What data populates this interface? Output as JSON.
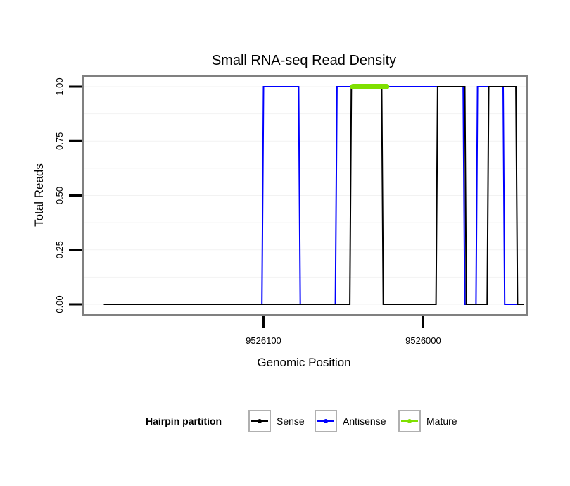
{
  "chart_data": {
    "type": "line",
    "title": "Small RNA-seq Read Density",
    "xlabel": "Genomic Position",
    "ylabel": "Total Reads",
    "x_reversed": true,
    "xlim": [
      9526213,
      9525935
    ],
    "ylim": [
      0,
      1
    ],
    "x_ticks": [
      {
        "value": 9526100,
        "label": "9526100"
      },
      {
        "value": 9526000,
        "label": "9526000"
      }
    ],
    "y_ticks": [
      {
        "value": 0,
        "label": "0.00"
      },
      {
        "value": 0.25,
        "label": "0.25"
      },
      {
        "value": 0.5,
        "label": "0.50"
      },
      {
        "value": 0.75,
        "label": "0.75"
      },
      {
        "value": 1,
        "label": "1.00"
      }
    ],
    "legend": {
      "title": "Hairpin partition",
      "position": "bottom",
      "entries": [
        {
          "name": "Sense",
          "color": "#000000"
        },
        {
          "name": "Antisense",
          "color": "#0000ff"
        },
        {
          "name": "Mature",
          "color": "#7fe000"
        }
      ]
    },
    "series": [
      {
        "name": "Antisense",
        "color": "#0000ff",
        "x": [
          9526200,
          9526101,
          9526100,
          9526078,
          9526077,
          9526055,
          9526054,
          9525975,
          9525974,
          9525967,
          9525966,
          9525950,
          9525949,
          9525940
        ],
        "y": [
          0,
          0,
          1,
          1,
          0,
          0,
          1,
          1,
          0,
          0,
          1,
          1,
          0,
          0
        ]
      },
      {
        "name": "Sense",
        "color": "#000000",
        "x": [
          9526200,
          9526046,
          9526045,
          9526026,
          9526025,
          9525992,
          9525991,
          9525974,
          9525973,
          9525960,
          9525959,
          9525942,
          9525941,
          9525937
        ],
        "y": [
          0,
          0,
          1,
          1,
          0,
          0,
          1,
          1,
          0,
          0,
          1,
          1,
          0,
          0
        ]
      },
      {
        "name": "Mature",
        "color": "#7fe000",
        "x": [
          9526044,
          9526023
        ],
        "y": [
          1,
          1
        ]
      }
    ]
  }
}
